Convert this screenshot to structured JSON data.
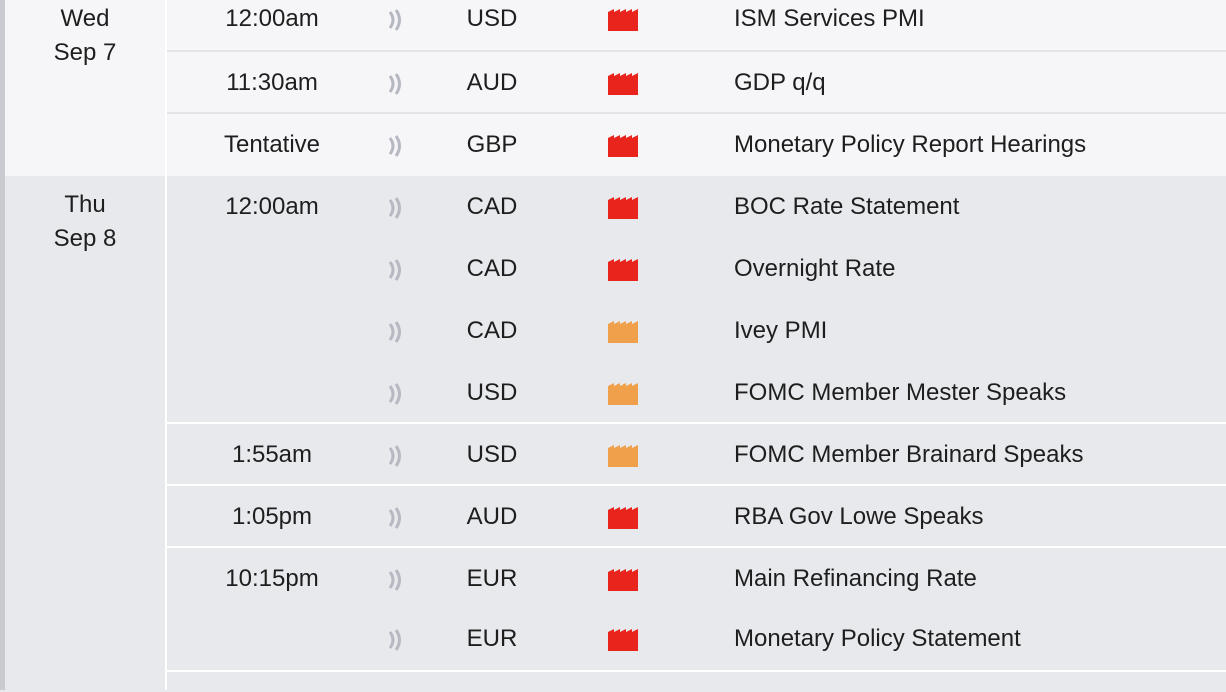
{
  "colors": {
    "high_impact": "#e8241c",
    "medium_impact": "#f0a04a",
    "sound_icon": "#b6b9c2"
  },
  "days": [
    {
      "weekday": "Wed",
      "date": "Sep 7",
      "events": [
        {
          "time": "12:00am",
          "currency": "USD",
          "impact": "high",
          "title": "ISM Services PMI"
        },
        {
          "time": "11:30am",
          "currency": "AUD",
          "impact": "high",
          "title": "GDP q/q"
        },
        {
          "time": "Tentative",
          "currency": "GBP",
          "impact": "high",
          "title": "Monetary Policy Report Hearings"
        }
      ]
    },
    {
      "weekday": "Thu",
      "date": "Sep 8",
      "events": [
        {
          "time": "12:00am",
          "currency": "CAD",
          "impact": "high",
          "title": "BOC Rate Statement"
        },
        {
          "time": "",
          "currency": "CAD",
          "impact": "high",
          "title": "Overnight Rate"
        },
        {
          "time": "",
          "currency": "CAD",
          "impact": "medium",
          "title": "Ivey PMI"
        },
        {
          "time": "",
          "currency": "USD",
          "impact": "medium",
          "title": "FOMC Member Mester Speaks"
        },
        {
          "time": "1:55am",
          "currency": "USD",
          "impact": "medium",
          "title": "FOMC Member Brainard Speaks"
        },
        {
          "time": "1:05pm",
          "currency": "AUD",
          "impact": "high",
          "title": "RBA Gov Lowe Speaks"
        },
        {
          "time": "10:15pm",
          "currency": "EUR",
          "impact": "high",
          "title": "Main Refinancing Rate"
        },
        {
          "time": "",
          "currency": "EUR",
          "impact": "high",
          "title": "Monetary Policy Statement"
        }
      ]
    }
  ]
}
